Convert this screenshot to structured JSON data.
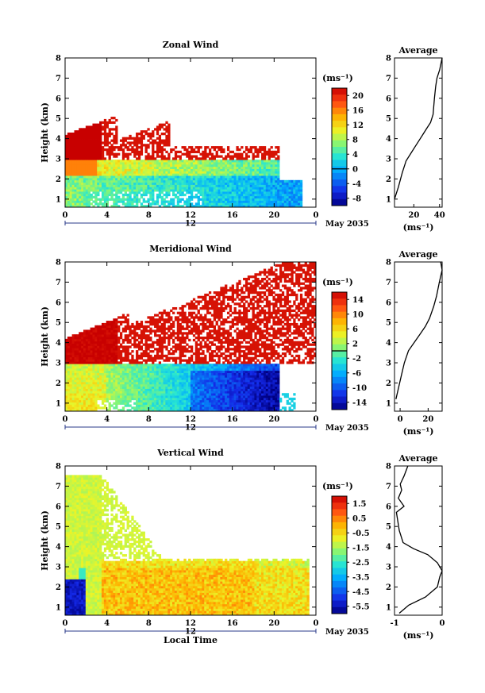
{
  "figure": {
    "date_label": "May 2035",
    "x_ticks": [
      "0",
      "4",
      "8",
      "12",
      "16",
      "20",
      "0"
    ],
    "day_label": "12",
    "xlabel": "Local Time",
    "ylabel": "Height (km)",
    "y_ticks": [
      "1",
      "2",
      "3",
      "4",
      "5",
      "6",
      "7",
      "8"
    ],
    "unit_label": "(ms⁻¹)"
  },
  "chart_data": [
    {
      "type": "heatmap",
      "title": "Zonal Wind",
      "x_range_hours": [
        0,
        24
      ],
      "y_range_km": [
        0.6,
        8.0
      ],
      "colorbar": {
        "ticks": [
          "20",
          "16",
          "12",
          "8",
          "4",
          "0",
          "-4",
          "-8"
        ],
        "min": -10,
        "max": 22
      },
      "profile": {
        "title": "Average",
        "xlabel": "(ms⁻¹)",
        "x_ticks": [
          "20",
          "40"
        ],
        "xlim": [
          5,
          42
        ],
        "points": [
          [
            5,
            1.0
          ],
          [
            8,
            1.6
          ],
          [
            11,
            2.3
          ],
          [
            14,
            2.9
          ],
          [
            18,
            3.3
          ],
          [
            21,
            3.6
          ],
          [
            24,
            3.9
          ],
          [
            27,
            4.2
          ],
          [
            30,
            4.5
          ],
          [
            33,
            4.8
          ],
          [
            35,
            5.2
          ],
          [
            36,
            6.0
          ],
          [
            37,
            6.6
          ],
          [
            38,
            7.0
          ],
          [
            40,
            7.4
          ],
          [
            42,
            8.0
          ]
        ]
      }
    },
    {
      "type": "heatmap",
      "title": "Meridional Wind",
      "x_range_hours": [
        0,
        24
      ],
      "y_range_km": [
        0.6,
        8.0
      ],
      "colorbar": {
        "ticks": [
          "14",
          "10",
          "6",
          "2",
          "-2",
          "-6",
          "-10",
          "-14"
        ],
        "min": -16,
        "max": 16
      },
      "profile": {
        "title": "Average",
        "xlabel": "(ms⁻¹)",
        "x_ticks": [
          "0",
          "20"
        ],
        "xlim": [
          -4,
          30
        ],
        "points": [
          [
            -3,
            1.2
          ],
          [
            -1,
            1.8
          ],
          [
            1,
            2.4
          ],
          [
            3,
            3.0
          ],
          [
            6,
            3.6
          ],
          [
            10,
            4.0
          ],
          [
            14,
            4.4
          ],
          [
            18,
            4.8
          ],
          [
            21,
            5.2
          ],
          [
            24,
            5.8
          ],
          [
            26,
            6.3
          ],
          [
            28,
            7.0
          ],
          [
            30,
            7.6
          ],
          [
            29,
            8.0
          ]
        ]
      }
    },
    {
      "type": "heatmap",
      "title": "Vertical Wind",
      "x_range_hours": [
        0,
        24
      ],
      "y_range_km": [
        0.6,
        8.0
      ],
      "colorbar": {
        "ticks": [
          "1.5",
          "0.5",
          "-0.5",
          "-1.5",
          "-2.5",
          "-3.5",
          "-4.5",
          "-5.5"
        ],
        "min": -6,
        "max": 2
      },
      "profile": {
        "title": "Average",
        "xlabel": "(ms⁻¹)",
        "x_ticks": [
          "-1",
          "0"
        ],
        "xlim": [
          -1.0,
          0.0
        ],
        "points": [
          [
            -0.9,
            0.7
          ],
          [
            -0.7,
            1.1
          ],
          [
            -0.35,
            1.5
          ],
          [
            -0.1,
            2.0
          ],
          [
            -0.05,
            2.5
          ],
          [
            0.0,
            2.8
          ],
          [
            -0.1,
            3.2
          ],
          [
            -0.3,
            3.6
          ],
          [
            -0.6,
            3.9
          ],
          [
            -0.82,
            4.2
          ],
          [
            -0.9,
            4.8
          ],
          [
            -0.96,
            5.7
          ],
          [
            -0.8,
            6.0
          ],
          [
            -0.92,
            6.4
          ],
          [
            -0.85,
            6.8
          ],
          [
            -0.88,
            7.1
          ],
          [
            -0.8,
            7.5
          ],
          [
            -0.72,
            8.0
          ]
        ]
      }
    }
  ]
}
